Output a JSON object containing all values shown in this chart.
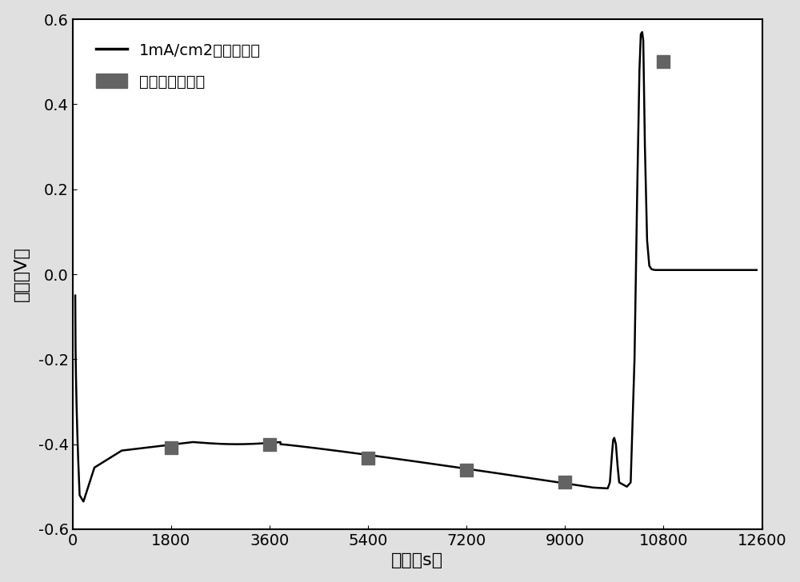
{
  "title": "",
  "xlabel": "时间（s）",
  "ylabel": "电压（V）",
  "xlim": [
    0,
    12600
  ],
  "ylim": [
    -0.6,
    0.6
  ],
  "xticks": [
    0,
    1800,
    3600,
    5400,
    7200,
    9000,
    10800,
    12600
  ],
  "yticks": [
    -0.6,
    -0.4,
    -0.2,
    0.0,
    0.2,
    0.4,
    0.6
  ],
  "line_color": "#000000",
  "line_width": 1.8,
  "marker_color": "#636363",
  "marker_size": 11,
  "legend_line": "1mA/cm2恒流充放电",
  "legend_marker": "半小时取一个点",
  "background_color": "#e0e0e0",
  "plot_bg_color": "#ffffff",
  "scatter_x": [
    1800,
    3600,
    5400,
    7200,
    9000,
    10800
  ],
  "scatter_y": [
    -0.408,
    -0.4,
    -0.432,
    -0.46,
    -0.49,
    0.5
  ],
  "xlabel_fontsize": 16,
  "ylabel_fontsize": 16,
  "tick_fontsize": 14,
  "legend_fontsize": 14
}
